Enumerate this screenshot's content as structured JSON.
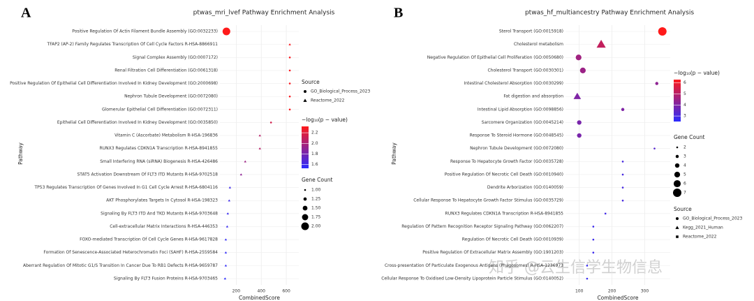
{
  "panels": [
    "A",
    "B"
  ],
  "watermark": "知乎 @云生信学生物信息",
  "chart_data": [
    {
      "type": "scatter",
      "title": "ptwas_mri_lvef Pathway Enrichment Analysis",
      "x_label": "CombinedScore",
      "y_label": "Pathway",
      "categories": [
        "Positive Regulation Of Actin Filament Bundle Assembly (GO:0032233)",
        "TFAP2 (AP-2) Family Regulates Transcription Of Cell Cycle Factors R-HSA-8866911",
        "Signal Complex Assembly (GO:0007172)",
        "Renal Filtration Cell Differentiation (GO:0061318)",
        "Positive Regulation Of Epithelial Cell Differentiation Involved In Kidney Development (GO:2000698)",
        "Nephron Tubule Development (GO:0072080)",
        "Glomerular Epithelial Cell Differentiation (GO:0072311)",
        "Epithelial Cell Differentiation Involved In Kidney Development (GO:0035850)",
        "Vitamin C (Ascorbate) Metabolism R-HSA-196836",
        "RUNX3 Regulates CDKN1A Transcription R-HSA-8941855",
        "Small Interfering RNA (siRNA) Biogenesis R-HSA-426486",
        "STAT5 Activation Downstream Of FLT3 ITD Mutants R-HSA-9702518",
        "TP53 Regulates Transcription Of Genes Involved In G1 Cell Cycle Arrest R-HSA-6804116",
        "AKT Phosphorylates Targets In Cytosol R-HSA-198323",
        "Signaling By FLT3 ITD And TKD Mutants R-HSA-9703648",
        "Cell-extracellular Matrix Interactions R-HSA-446353",
        "FOXO-mediated Transcription Of Cell Cycle Genes R-HSA-9617828",
        "Formation Of Senescence-Associated Heterochromatin Foci (SAHF) R-HSA-2559584",
        "Aberrant Regulation Of Mitotic G1/S Transition In Cancer Due To RB1 Defects R-HSA-9659787",
        "Signaling By FLT3 Fusion Proteins R-HSA-9703465"
      ],
      "values": [
        122,
        628,
        628,
        628,
        628,
        628,
        628,
        478,
        389,
        389,
        272,
        239,
        150,
        144,
        133,
        128,
        117,
        117,
        117,
        111
      ],
      "color_values": [
        2.32,
        2.3,
        2.3,
        2.3,
        2.3,
        2.3,
        2.3,
        2.15,
        2.05,
        2.05,
        1.95,
        1.9,
        1.6,
        1.6,
        1.58,
        1.58,
        1.55,
        1.55,
        1.55,
        1.53
      ],
      "sizes": [
        2,
        1,
        1,
        1,
        1,
        1,
        1,
        1,
        1,
        1,
        1,
        1,
        1,
        1,
        1,
        1,
        1,
        1,
        1,
        1
      ],
      "point_source": [
        "GO_Biological_Process_2023",
        "Reactome_2022",
        "GO_Biological_Process_2023",
        "GO_Biological_Process_2023",
        "GO_Biological_Process_2023",
        "GO_Biological_Process_2023",
        "GO_Biological_Process_2023",
        "GO_Biological_Process_2023",
        "Reactome_2022",
        "Reactome_2022",
        "Reactome_2022",
        "Reactome_2022",
        "Reactome_2022",
        "Reactome_2022",
        "Reactome_2022",
        "Reactome_2022",
        "Reactome_2022",
        "Reactome_2022",
        "Reactome_2022",
        "Reactome_2022"
      ],
      "xlim": [
        70,
        700
      ],
      "xticks": [
        200,
        400,
        600
      ],
      "grid": true,
      "source_title": "Source",
      "sources": [
        "GO_Biological_Process_2023",
        "Reactome_2022"
      ],
      "source_shapes": [
        "circle",
        "triangle"
      ],
      "color_title": "−log₁₀(p − value)",
      "color_low": "#2b2bff",
      "color_high": "#ff1a1a",
      "colorlim": [
        1.53,
        2.32
      ],
      "colorticks": [
        2.2,
        {
          "value": 2,
          "label": "2.0"
        },
        1.8,
        1.6
      ],
      "size_title": "Gene Count",
      "size_lim": [
        1,
        2
      ],
      "size_ticks": [
        {
          "value": 1,
          "label": "1.00"
        },
        {
          "value": 1.25,
          "label": "1.25"
        },
        {
          "value": 1.5,
          "label": "1.50"
        },
        {
          "value": 1.75,
          "label": "1.75"
        },
        {
          "value": 2,
          "label": "2.00"
        }
      ]
    },
    {
      "type": "scatter",
      "title": "ptwas_hf_multiancestry Pathway Enrichment Analysis",
      "x_label": "CombinedScore",
      "y_label": "Pathway",
      "categories": [
        "Sterol Transport (GO:0015918)",
        "Cholesterol metabolism",
        "Negative Regulation Of Epithelial Cell Proliferation (GO:0050680)",
        "Cholesterol Transport (GO:0030301)",
        "Intestinal Cholesterol Absorption (GO:0030299)",
        "Fat digestion and absorption",
        "Intestinal Lipid Absorption (GO:0098856)",
        "Sarcomere Organization (GO:0045214)",
        "Response To Steroid Hormone (GO:0048545)",
        "Nephron Tubule Development (GO:0072080)",
        "Response To Hepatocyte Growth Factor (GO:0035728)",
        "Positive Regulation Of Necrotic Cell Death (GO:0010940)",
        "Dendrite Arborization (GO:0140059)",
        "Cellular Response To Hepatocyte Growth Factor Stimulus (GO:0035729)",
        "RUNX3 Regulates CDKN1A Transcription R-HSA-8941855",
        "Regulation Of Pattern Recognition Receptor Signaling Pathway (GO:0062207)",
        "Regulation Of Necrotic Cell Death (GO:0010939)",
        "Positive Regulation Of Extracellular Matrix Assembly (GO:1901203)",
        "Cross-presentation Of Particulate Exogenous Antigens (Phagosomes) R-HSA-1236973",
        "Cellular Response To Oxidised Low-Density Lipoprotein Particle Stimulus (GO:0140052)"
      ],
      "values": [
        354,
        167,
        98,
        111,
        337,
        94,
        233,
        100,
        100,
        330,
        233,
        233,
        233,
        233,
        180,
        143,
        143,
        143,
        124,
        124
      ],
      "color_values": [
        6.3,
        5.2,
        4.6,
        4.5,
        4.3,
        4,
        4,
        3.9,
        3.9,
        3.3,
        3,
        3,
        3,
        3,
        2.9,
        2.8,
        2.8,
        2.8,
        2.7,
        2.7
      ],
      "sizes": [
        7,
        6,
        5,
        5,
        3,
        5,
        3,
        4,
        4,
        2,
        2,
        2,
        2,
        2,
        2,
        2,
        2,
        2,
        2,
        2
      ],
      "point_source": [
        "GO_Biological_Process_2023",
        "Kegg_2021_Human",
        "GO_Biological_Process_2023",
        "GO_Biological_Process_2023",
        "GO_Biological_Process_2023",
        "Kegg_2021_Human",
        "GO_Biological_Process_2023",
        "GO_Biological_Process_2023",
        "GO_Biological_Process_2023",
        "GO_Biological_Process_2023",
        "GO_Biological_Process_2023",
        "GO_Biological_Process_2023",
        "GO_Biological_Process_2023",
        "GO_Biological_Process_2023",
        "Reactome_2022",
        "GO_Biological_Process_2023",
        "GO_Biological_Process_2023",
        "GO_Biological_Process_2023",
        "Reactome_2022",
        "GO_Biological_Process_2023"
      ],
      "xlim": [
        58,
        378
      ],
      "xticks": [
        100,
        200,
        300
      ],
      "grid": true,
      "source_title": "Source",
      "sources": [
        "GO_Biological_Process_2023",
        "Kegg_2021_Human",
        "Reactome_2022"
      ],
      "source_shapes": [
        "circle",
        "triangle",
        "square"
      ],
      "color_title": "−log₁₀(p − value)",
      "color_low": "#2b2bff",
      "color_high": "#ff1a1a",
      "colorlim": [
        2.5,
        6.3
      ],
      "colorticks": [
        6,
        5,
        4,
        3
      ],
      "size_title": "Gene Count",
      "size_lim": [
        2,
        7
      ],
      "size_ticks": [
        2,
        3,
        4,
        5,
        6,
        7
      ]
    }
  ]
}
